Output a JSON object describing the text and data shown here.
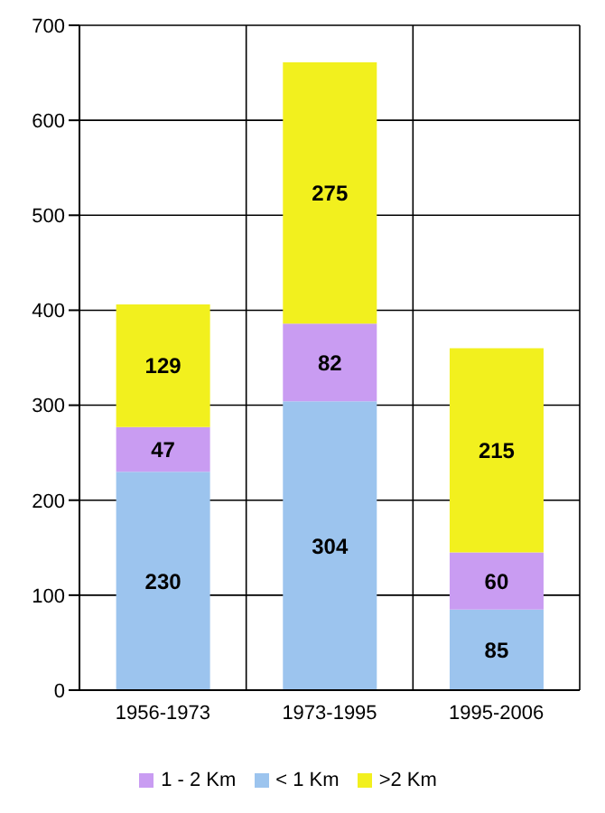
{
  "chart_data": {
    "type": "bar",
    "stacked": true,
    "categories": [
      "1956-1973",
      "1973-1995",
      "1995-2006"
    ],
    "series": [
      {
        "name": "< 1 Km",
        "color": "#9cc4ee",
        "values": [
          230,
          304,
          85
        ]
      },
      {
        "name": "1 - 2 Km",
        "color": "#c99cf2",
        "values": [
          47,
          82,
          60
        ]
      },
      {
        "name": ">2 Km",
        "color": "#f2f01e",
        "values": [
          129,
          275,
          215
        ]
      }
    ],
    "ylim": [
      0,
      700
    ],
    "yticks": [
      0,
      100,
      200,
      300,
      400,
      500,
      600,
      700
    ],
    "grid": true,
    "legend": "bottom",
    "data_labels": true
  }
}
